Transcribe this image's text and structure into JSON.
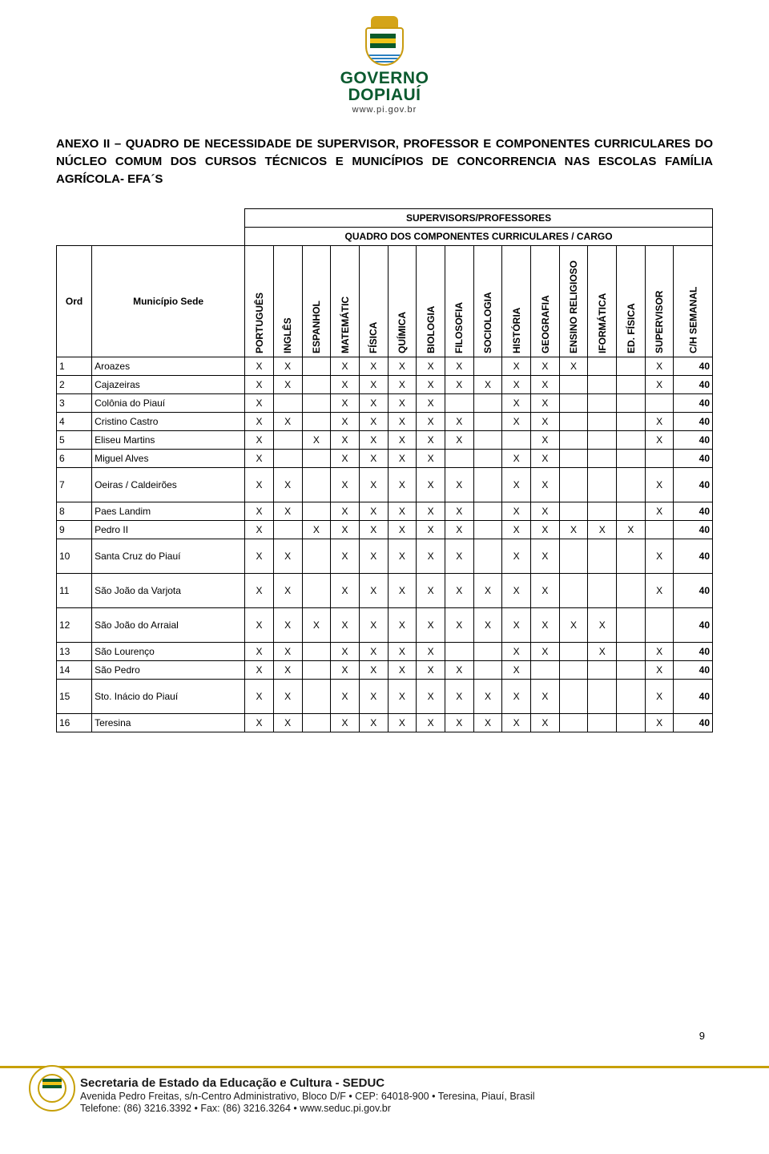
{
  "header": {
    "gov_line1": "GOVERNO",
    "gov_line2": "DOPIAUÍ",
    "url": "www.pi.gov.br"
  },
  "title": "ANEXO II – QUADRO DE NECESSIDADE DE SUPERVISOR, PROFESSOR E COMPONENTES CURRICULARES DO NÚCLEO COMUM DOS CURSOS TÉCNICOS E MUNICÍPIOS DE CONCORRENCIA NAS ESCOLAS FAMÍLIA AGRÍCOLA- EFA´S",
  "table": {
    "superhead1": "SUPERVISORS/PROFESSORES",
    "superhead2": "QUADRO DOS COMPONENTES CURRICULARES / CARGO",
    "ord_label": "Ord",
    "mun_label": "Município Sede",
    "columns": [
      "PORTUGUÊS",
      "INGLÊS",
      "ESPANHOL",
      "MATEMÁTIC",
      "FÍSICA",
      "QUÍMICA",
      "BIOLOGIA",
      "FILOSOFIA",
      "SOCIOLOGIA",
      "HISTÓRIA",
      "GEOGRAFIA",
      "ENSINO RELIGIOSO",
      "IFORMÁTICA",
      "ED. FÍSICA",
      "SUPERVISOR",
      "C/H SEMANAL"
    ],
    "rows": [
      {
        "ord": "1",
        "mun": "Aroazes",
        "x": [
          "X",
          "X",
          "",
          "X",
          "X",
          "X",
          "X",
          "X",
          "",
          "X",
          "X",
          "X",
          "",
          "",
          "X"
        ],
        "ch": "40"
      },
      {
        "ord": "2",
        "mun": "Cajazeiras",
        "x": [
          "X",
          "X",
          "",
          "X",
          "X",
          "X",
          "X",
          "X",
          "X",
          "X",
          "X",
          "",
          "",
          "",
          "X"
        ],
        "ch": "40"
      },
      {
        "ord": "3",
        "mun": "Colônia do Piauí",
        "x": [
          "X",
          "",
          "",
          "X",
          "X",
          "X",
          "X",
          "",
          "",
          "X",
          "X",
          "",
          "",
          "",
          ""
        ],
        "ch": "40"
      },
      {
        "ord": "4",
        "mun": "Cristino Castro",
        "x": [
          "X",
          "X",
          "",
          "X",
          "X",
          "X",
          "X",
          "X",
          "",
          "X",
          "X",
          "",
          "",
          "",
          "X"
        ],
        "ch": "40"
      },
      {
        "ord": "5",
        "mun": "Eliseu Martins",
        "x": [
          "X",
          "",
          "X",
          "X",
          "X",
          "X",
          "X",
          "X",
          "",
          "",
          "X",
          "",
          "",
          "",
          "X"
        ],
        "ch": "40"
      },
      {
        "ord": "6",
        "mun": "Miguel Alves",
        "x": [
          "X",
          "",
          "",
          "X",
          "X",
          "X",
          "X",
          "",
          "",
          "X",
          "X",
          "",
          "",
          "",
          ""
        ],
        "ch": "40"
      },
      {
        "ord": "7",
        "mun": "Oeiras / Caldeirões",
        "x": [
          "X",
          "X",
          "",
          "X",
          "X",
          "X",
          "X",
          "X",
          "",
          "X",
          "X",
          "",
          "",
          "",
          "X"
        ],
        "ch": "40",
        "tall": true
      },
      {
        "ord": "8",
        "mun": "Paes Landim",
        "x": [
          "X",
          "X",
          "",
          "X",
          "X",
          "X",
          "X",
          "X",
          "",
          "X",
          "X",
          "",
          "",
          "",
          "X"
        ],
        "ch": "40"
      },
      {
        "ord": "9",
        "mun": "Pedro II",
        "x": [
          "X",
          "",
          "X",
          "X",
          "X",
          "X",
          "X",
          "X",
          "",
          "X",
          "X",
          "X",
          "X",
          "X",
          ""
        ],
        "ch": "40"
      },
      {
        "ord": "10",
        "mun": "Santa Cruz do Piauí",
        "x": [
          "X",
          "X",
          "",
          "X",
          "X",
          "X",
          "X",
          "X",
          "",
          "X",
          "X",
          "",
          "",
          "",
          "X"
        ],
        "ch": "40",
        "tall": true
      },
      {
        "ord": "11",
        "mun": "São João da Varjota",
        "x": [
          "X",
          "X",
          "",
          "X",
          "X",
          "X",
          "X",
          "X",
          "X",
          "X",
          "X",
          "",
          "",
          "",
          "X"
        ],
        "ch": "40",
        "tall": true
      },
      {
        "ord": "12",
        "mun": "São João do Arraial",
        "x": [
          "X",
          "X",
          "X",
          "X",
          "X",
          "X",
          "X",
          "X",
          "X",
          "X",
          "X",
          "X",
          "X",
          "",
          ""
        ],
        "ch": "40",
        "tall": true
      },
      {
        "ord": "13",
        "mun": "São Lourenço",
        "x": [
          "X",
          "X",
          "",
          "X",
          "X",
          "X",
          "X",
          "",
          "",
          "X",
          "X",
          "",
          "X",
          "",
          "X"
        ],
        "ch": "40"
      },
      {
        "ord": "14",
        "mun": "São Pedro",
        "x": [
          "X",
          "X",
          "",
          "X",
          "X",
          "X",
          "X",
          "X",
          "",
          "X",
          "",
          "",
          "",
          "",
          "X"
        ],
        "ch": "40"
      },
      {
        "ord": "15",
        "mun": "Sto. Inácio do Piauí",
        "x": [
          "X",
          "X",
          "",
          "X",
          "X",
          "X",
          "X",
          "X",
          "X",
          "X",
          "X",
          "",
          "",
          "",
          "X"
        ],
        "ch": "40",
        "tall": true
      },
      {
        "ord": "16",
        "mun": "Teresina",
        "x": [
          "X",
          "X",
          "",
          "X",
          "X",
          "X",
          "X",
          "X",
          "X",
          "X",
          "X",
          "",
          "",
          "",
          "X"
        ],
        "ch": "40"
      }
    ]
  },
  "page_number": "9",
  "footer": {
    "line1": "Secretaria de Estado da Educação e Cultura - SEDUC",
    "line2": "Avenida Pedro Freitas, s/n-Centro Administrativo, Bloco D/F • CEP: 64018-900 • Teresina, Piauí, Brasil",
    "line3": "Telefone: (86) 3216.3392 • Fax: (86) 3216.3264 • www.seduc.pi.gov.br"
  },
  "colors": {
    "gov_green": "#0b5a2f",
    "footer_gold": "#c7a008",
    "text": "#000000",
    "bg": "#ffffff"
  }
}
